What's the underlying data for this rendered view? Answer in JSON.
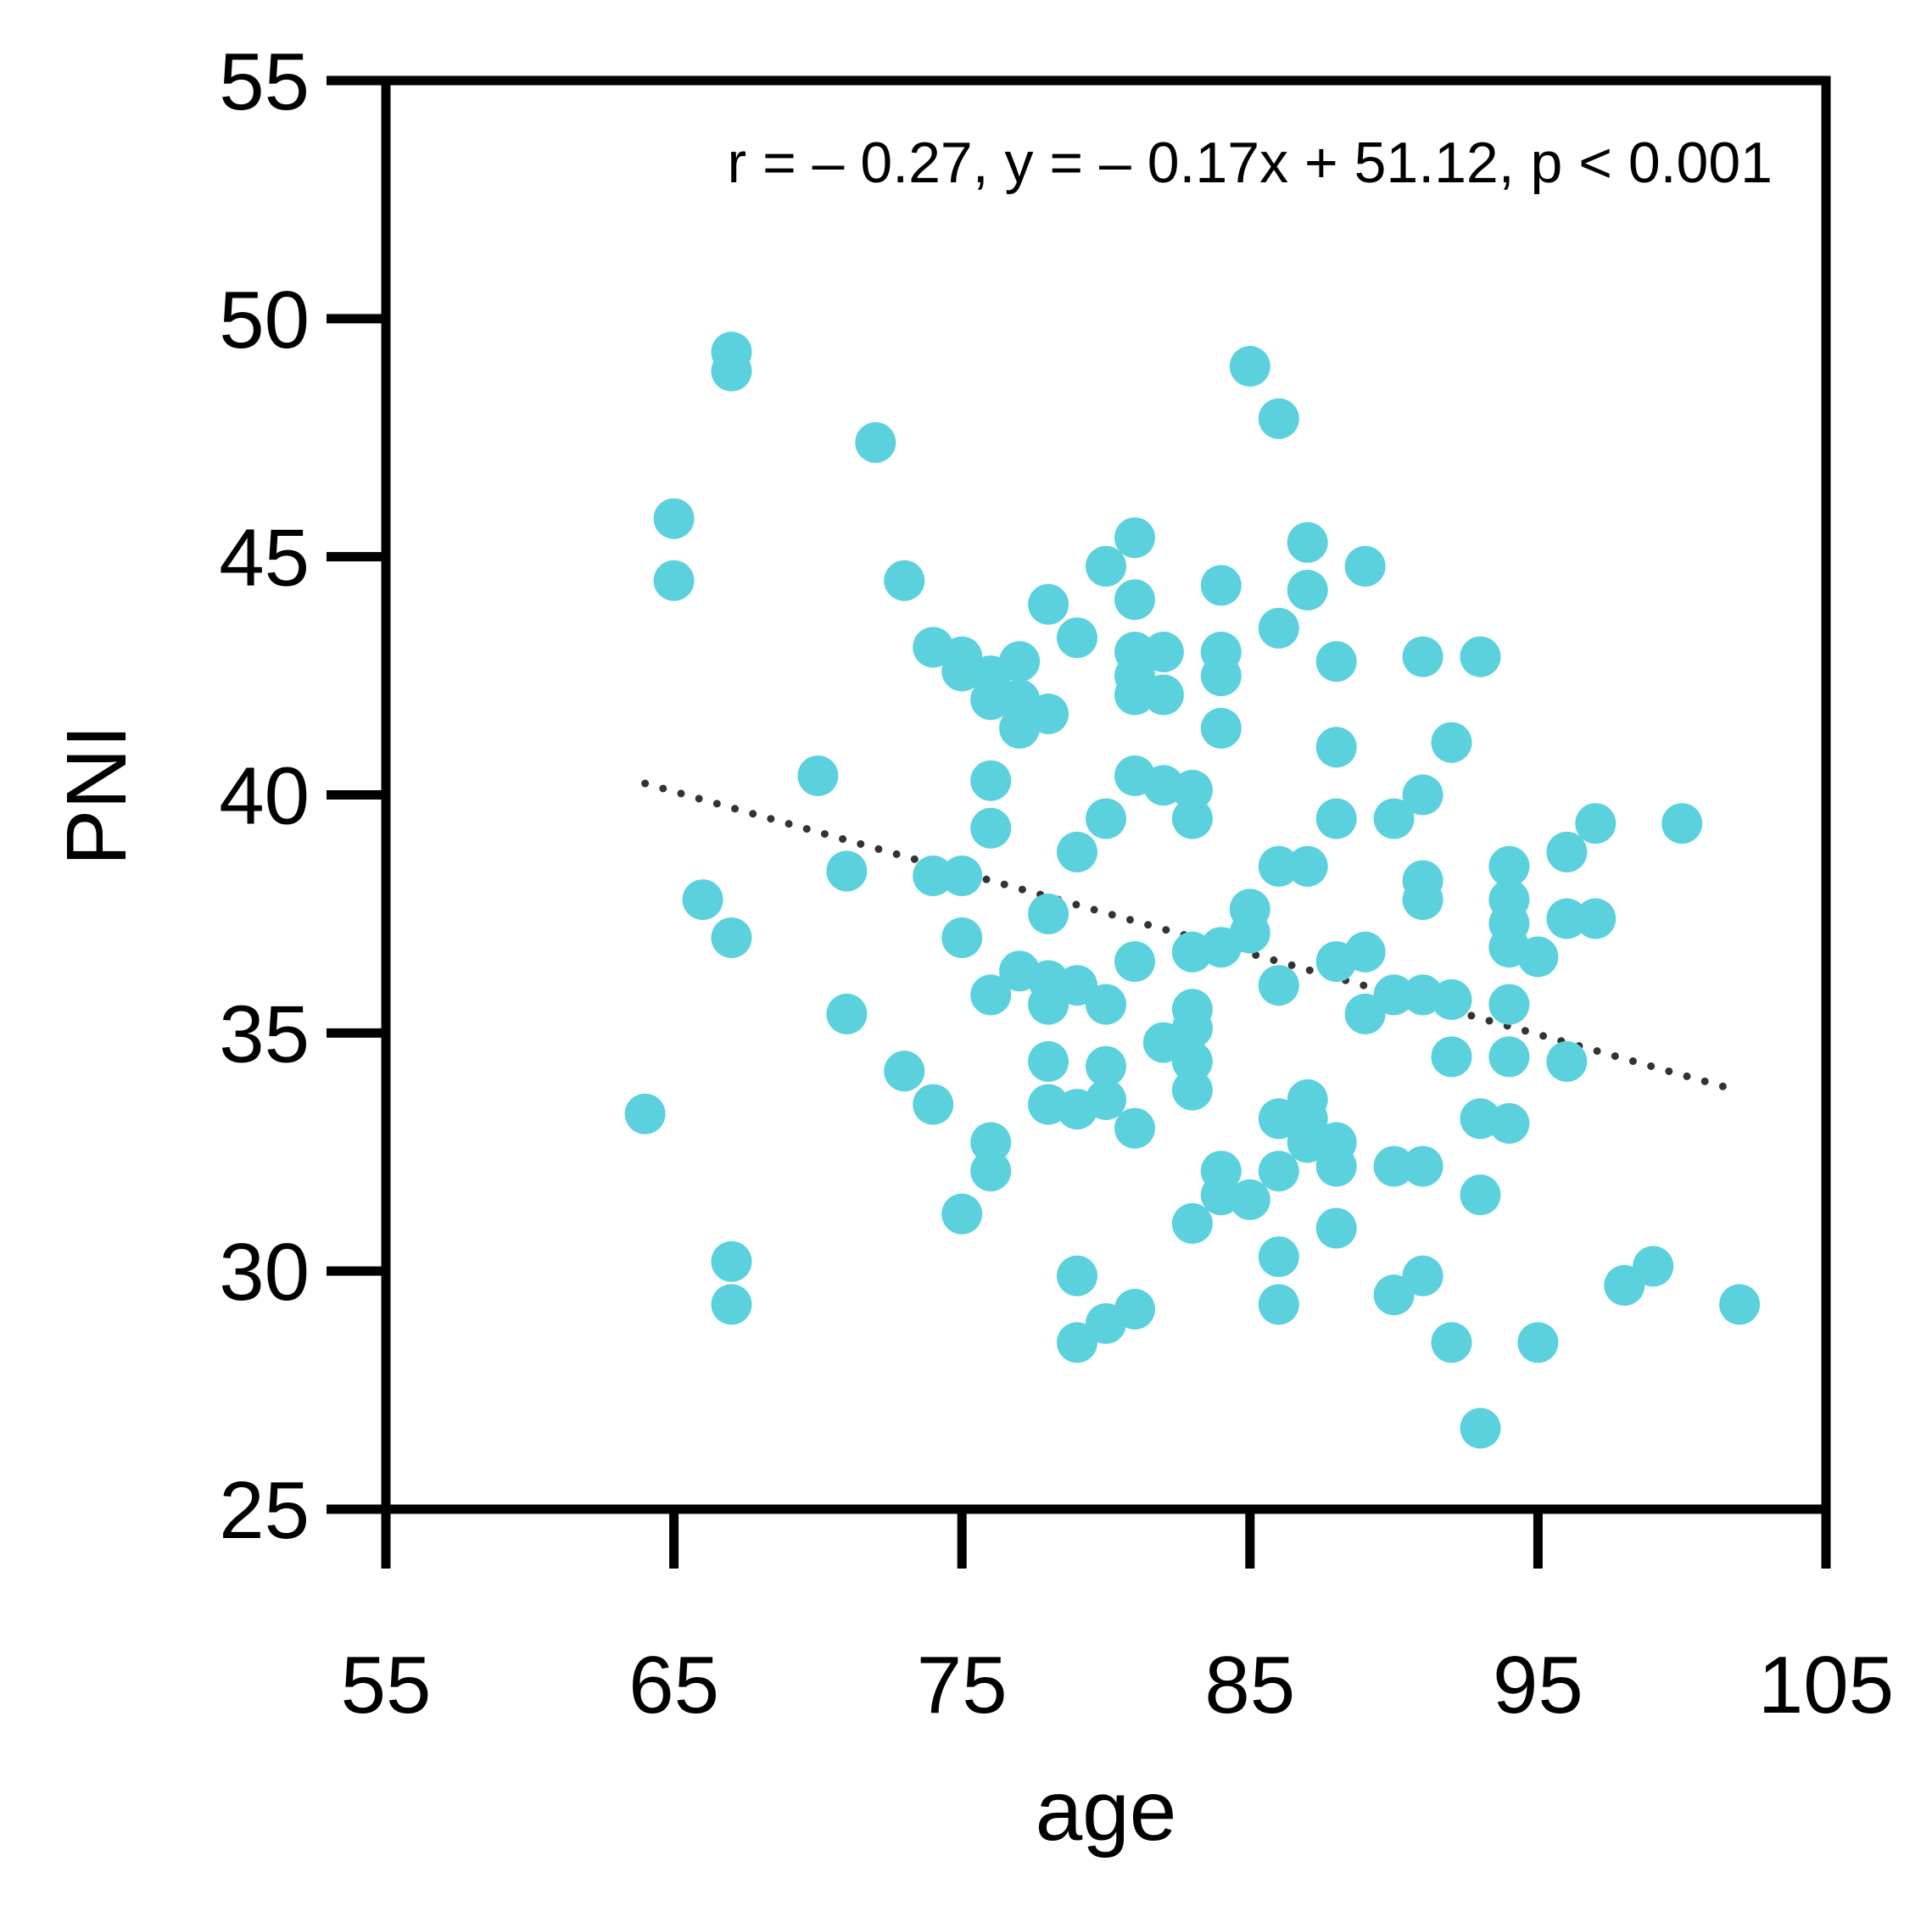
{
  "chart_data": {
    "type": "scatter",
    "title": "",
    "xlabel": "age",
    "ylabel": "PNI",
    "xlim": [
      55,
      105
    ],
    "ylim": [
      25,
      55
    ],
    "x_ticks": [
      55,
      65,
      75,
      85,
      95,
      105
    ],
    "y_ticks": [
      25,
      30,
      35,
      40,
      45,
      50,
      55
    ],
    "grid": false,
    "annotation": "r = – 0.27, y = – 0.17x + 51.12, p < 0.001",
    "regression": {
      "slope": -0.17,
      "intercept": 51.12,
      "x_start": 64,
      "x_end": 102,
      "style": "dotted",
      "color": "#333333"
    },
    "marker_color": "#5bd1de",
    "series": [
      {
        "points": [
          [
            64,
            33.3
          ],
          [
            65,
            45.8
          ],
          [
            65,
            44.5
          ],
          [
            66,
            37.8
          ],
          [
            67,
            49.3
          ],
          [
            67,
            48.9
          ],
          [
            67,
            37.0
          ],
          [
            67,
            30.2
          ],
          [
            67,
            29.3
          ],
          [
            70,
            40.4
          ],
          [
            71,
            38.4
          ],
          [
            71,
            35.4
          ],
          [
            72,
            47.4
          ],
          [
            73,
            44.5
          ],
          [
            73,
            34.2
          ],
          [
            74,
            43.1
          ],
          [
            74,
            38.3
          ],
          [
            74,
            33.5
          ],
          [
            75,
            42.9
          ],
          [
            75,
            42.6
          ],
          [
            75,
            38.3
          ],
          [
            75,
            37.0
          ],
          [
            75,
            31.2
          ],
          [
            76,
            42.5
          ],
          [
            76,
            42.0
          ],
          [
            76,
            40.3
          ],
          [
            76,
            39.3
          ],
          [
            76,
            35.8
          ],
          [
            76,
            32.7
          ],
          [
            76,
            32.1
          ],
          [
            77,
            42.8
          ],
          [
            77,
            42.0
          ],
          [
            77,
            41.4
          ],
          [
            77,
            36.3
          ],
          [
            78,
            44.0
          ],
          [
            78,
            41.7
          ],
          [
            78,
            37.5
          ],
          [
            78,
            36.1
          ],
          [
            78,
            35.6
          ],
          [
            78,
            34.4
          ],
          [
            78,
            33.5
          ],
          [
            79,
            43.3
          ],
          [
            79,
            38.8
          ],
          [
            79,
            36.0
          ],
          [
            79,
            33.4
          ],
          [
            79,
            29.9
          ],
          [
            79,
            28.5
          ],
          [
            80,
            44.8
          ],
          [
            80,
            39.5
          ],
          [
            80,
            35.6
          ],
          [
            80,
            34.3
          ],
          [
            80,
            33.6
          ],
          [
            80,
            28.9
          ],
          [
            81,
            45.4
          ],
          [
            81,
            44.1
          ],
          [
            81,
            43.0
          ],
          [
            81,
            42.5
          ],
          [
            81,
            42.1
          ],
          [
            81,
            40.4
          ],
          [
            81,
            36.5
          ],
          [
            81,
            33.0
          ],
          [
            81,
            29.2
          ],
          [
            82,
            43.0
          ],
          [
            82,
            42.1
          ],
          [
            82,
            40.2
          ],
          [
            82,
            34.8
          ],
          [
            83,
            40.1
          ],
          [
            83,
            39.5
          ],
          [
            83,
            36.7
          ],
          [
            83,
            35.5
          ],
          [
            83,
            35.1
          ],
          [
            83,
            34.4
          ],
          [
            83,
            33.8
          ],
          [
            83,
            31.0
          ],
          [
            84,
            44.4
          ],
          [
            84,
            43.0
          ],
          [
            84,
            42.5
          ],
          [
            84,
            41.4
          ],
          [
            84,
            36.8
          ],
          [
            84,
            32.1
          ],
          [
            84,
            31.6
          ],
          [
            85,
            49.0
          ],
          [
            85,
            37.6
          ],
          [
            85,
            37.1
          ],
          [
            85,
            31.5
          ],
          [
            86,
            47.9
          ],
          [
            86,
            43.5
          ],
          [
            86,
            38.5
          ],
          [
            86,
            36.0
          ],
          [
            86,
            33.2
          ],
          [
            86,
            32.1
          ],
          [
            86,
            30.3
          ],
          [
            86,
            29.3
          ],
          [
            87,
            45.3
          ],
          [
            87,
            44.3
          ],
          [
            87,
            38.5
          ],
          [
            87,
            33.6
          ],
          [
            87,
            33.2
          ],
          [
            87,
            32.7
          ],
          [
            88,
            42.8
          ],
          [
            88,
            41.0
          ],
          [
            88,
            39.5
          ],
          [
            88,
            36.5
          ],
          [
            88,
            32.7
          ],
          [
            88,
            32.2
          ],
          [
            88,
            30.9
          ],
          [
            89,
            44.8
          ],
          [
            89,
            36.7
          ],
          [
            89,
            35.4
          ],
          [
            90,
            39.5
          ],
          [
            90,
            35.8
          ],
          [
            90,
            32.2
          ],
          [
            90,
            29.5
          ],
          [
            91,
            42.9
          ],
          [
            91,
            40.0
          ],
          [
            91,
            38.2
          ],
          [
            91,
            37.8
          ],
          [
            91,
            35.8
          ],
          [
            91,
            32.2
          ],
          [
            91,
            29.9
          ],
          [
            92,
            41.1
          ],
          [
            92,
            35.7
          ],
          [
            92,
            34.5
          ],
          [
            92,
            28.5
          ],
          [
            93,
            42.9
          ],
          [
            93,
            33.2
          ],
          [
            93,
            31.6
          ],
          [
            93,
            26.7
          ],
          [
            94,
            38.5
          ],
          [
            94,
            37.8
          ],
          [
            94,
            37.3
          ],
          [
            94,
            36.8
          ],
          [
            94,
            35.6
          ],
          [
            94,
            34.5
          ],
          [
            94,
            33.1
          ],
          [
            95,
            36.6
          ],
          [
            95,
            28.5
          ],
          [
            96,
            38.8
          ],
          [
            96,
            37.4
          ],
          [
            96,
            34.4
          ],
          [
            97,
            39.4
          ],
          [
            97,
            37.4
          ],
          [
            98,
            29.7
          ],
          [
            99,
            30.1
          ],
          [
            100,
            39.4
          ],
          [
            102,
            29.3
          ]
        ]
      }
    ]
  }
}
